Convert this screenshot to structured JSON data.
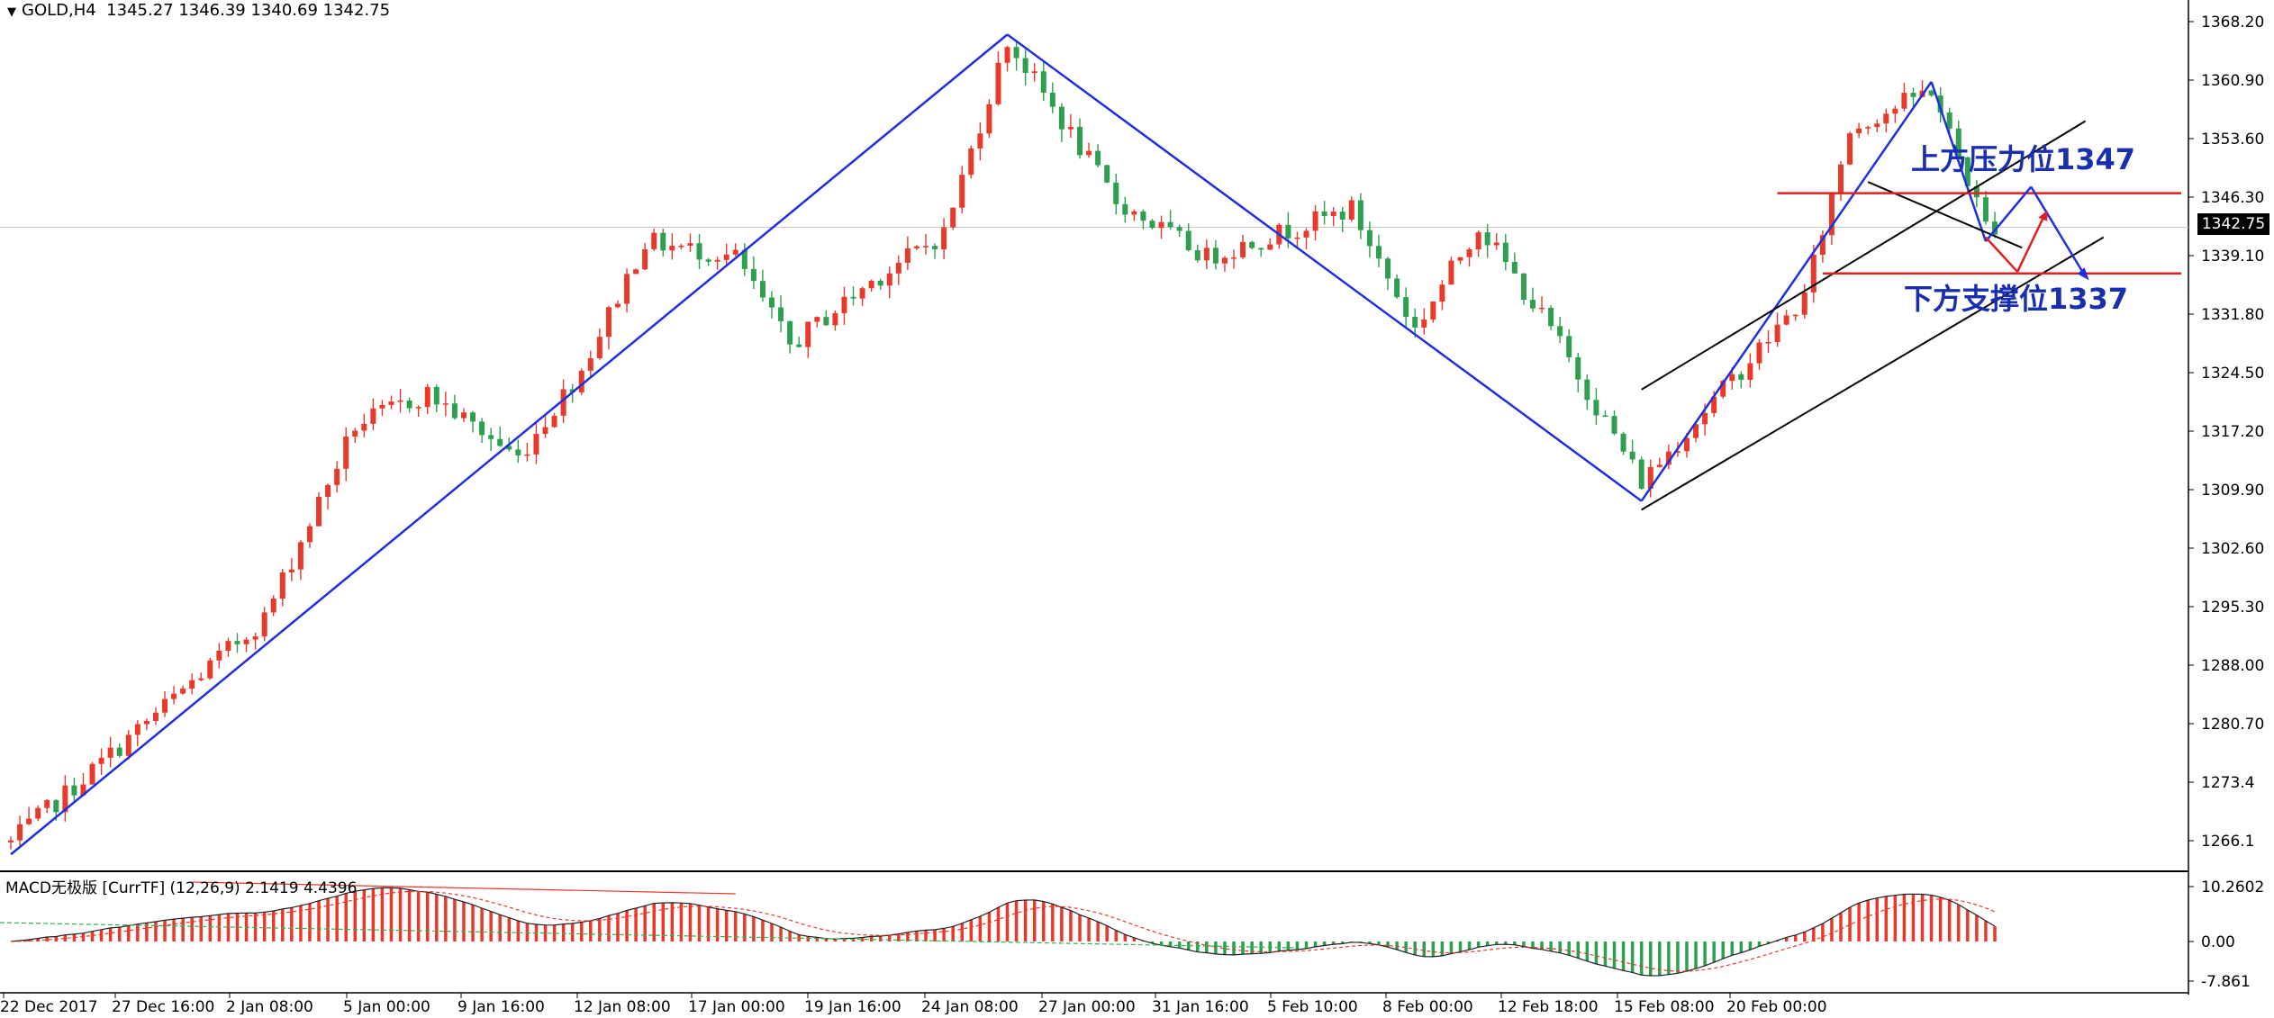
{
  "header": {
    "symbol": "GOLD,H4",
    "ohlc": "1345.27 1346.39 1340.69 1342.75"
  },
  "macd": {
    "label": "MACD无极版 [CurrTF] (12,26,9) 2.1419 4.4396",
    "axis_ticks": [
      "10.2602",
      "0.00",
      "-7.861"
    ]
  },
  "annotations": {
    "resistance": "上方压力位1347",
    "support": "下方支撑位1337"
  },
  "colors": {
    "bull": "#e8392b",
    "bear": "#2e9e4f",
    "trendline": "#1f2fe0",
    "level": "#e02020",
    "channel": "#000000",
    "annotation": "#1a2fb0"
  },
  "chart_data": {
    "type": "candlestick",
    "title": "GOLD,H4",
    "current_price": "1342.75",
    "y_ticks": [
      "1368.20",
      "1360.90",
      "1353.60",
      "1346.30",
      "1339.10",
      "1331.80",
      "1324.50",
      "1317.20",
      "1309.90",
      "1302.60",
      "1295.30",
      "1288.00",
      "1280.70",
      "1273.4",
      "1266.1"
    ],
    "ylim": [
      1263.0,
      1370.5
    ],
    "x_ticks": [
      "22 Dec 2017",
      "27 Dec 16:00",
      "2 Jan 08:00",
      "5 Jan 00:00",
      "9 Jan 16:00",
      "12 Jan 08:00",
      "17 Jan 00:00",
      "19 Jan 16:00",
      "24 Jan 08:00",
      "27 Jan 00:00",
      "31 Jan 16:00",
      "5 Feb 10:00",
      "8 Feb 00:00",
      "12 Feb 18:00",
      "15 Feb 08:00",
      "20 Feb 00:00"
    ],
    "n_bars": 220,
    "waypoints": [
      [
        0,
        1266
      ],
      [
        28,
        1294
      ],
      [
        38,
        1318
      ],
      [
        46,
        1322
      ],
      [
        56,
        1314
      ],
      [
        63,
        1325
      ],
      [
        70,
        1341
      ],
      [
        80,
        1339
      ],
      [
        86,
        1328
      ],
      [
        95,
        1336
      ],
      [
        103,
        1342
      ],
      [
        110,
        1366
      ],
      [
        122,
        1346
      ],
      [
        132,
        1339
      ],
      [
        148,
        1345
      ],
      [
        155,
        1330
      ],
      [
        162,
        1343
      ],
      [
        170,
        1330
      ],
      [
        180,
        1311
      ],
      [
        191,
        1325
      ],
      [
        198,
        1334
      ],
      [
        203,
        1355
      ],
      [
        212,
        1360
      ],
      [
        218,
        1343
      ]
    ],
    "levels": {
      "resistance": 1347,
      "support": 1337
    },
    "macd_range": [
      -7.861,
      10.2602
    ]
  }
}
